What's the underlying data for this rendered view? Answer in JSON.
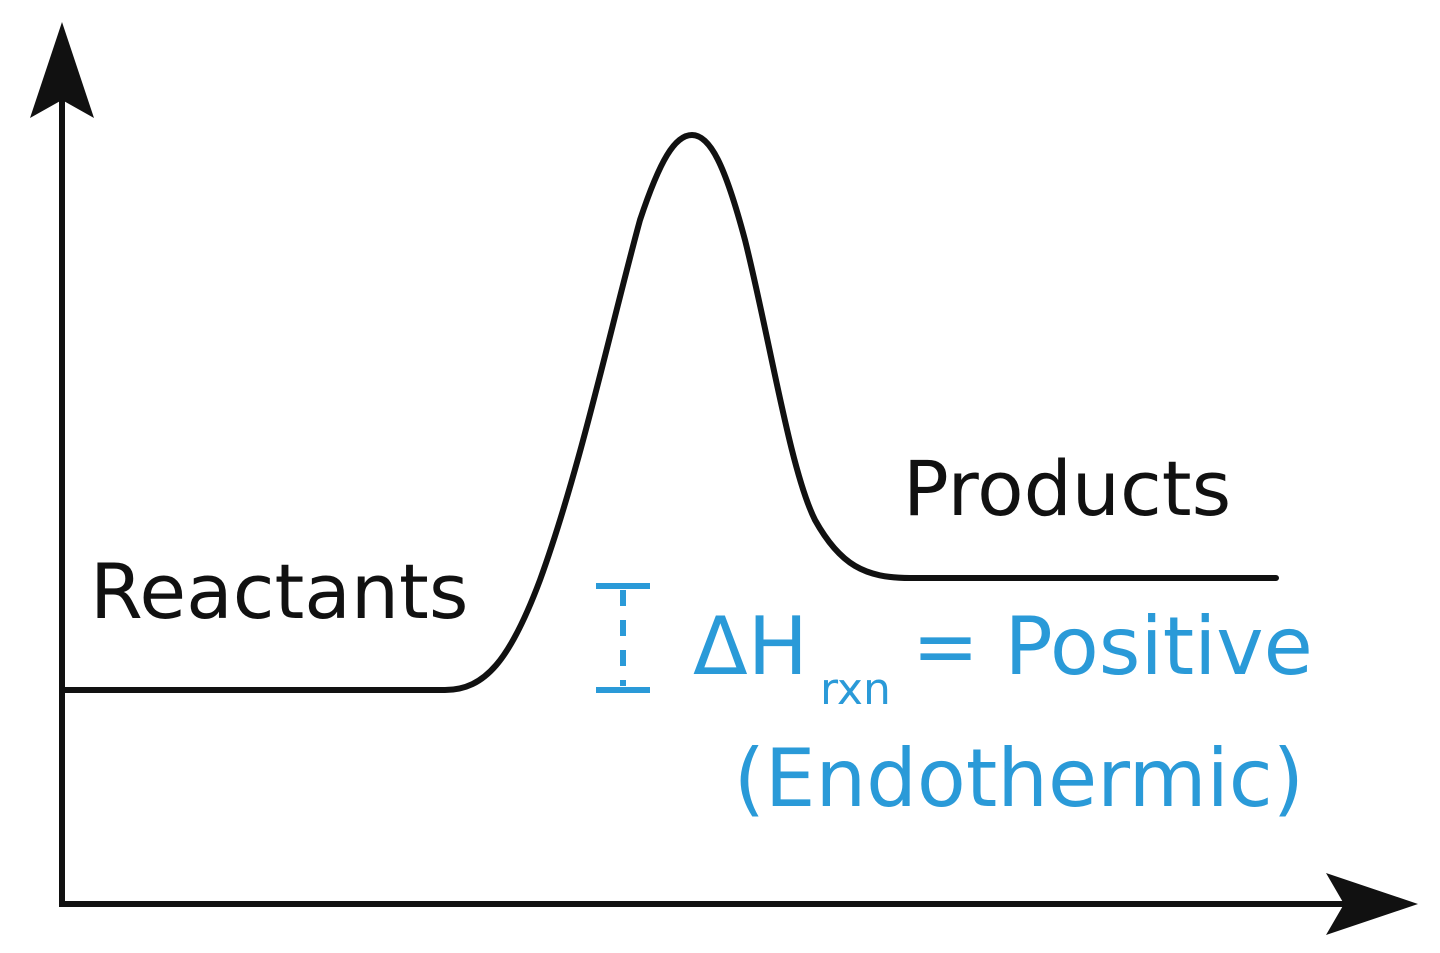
{
  "labels": {
    "reactants": "Reactants",
    "products": "Products"
  },
  "annotation": {
    "delta_symbol": "ΔH",
    "subscript": "rxn",
    "equals_text": "= Positive",
    "note": "(Endothermic)"
  },
  "colors": {
    "curve": "#111111",
    "axes": "#111111",
    "annotation": "#2a9ad8",
    "background": "#ffffff"
  },
  "diagram_type": "energy profile (endothermic reaction)"
}
